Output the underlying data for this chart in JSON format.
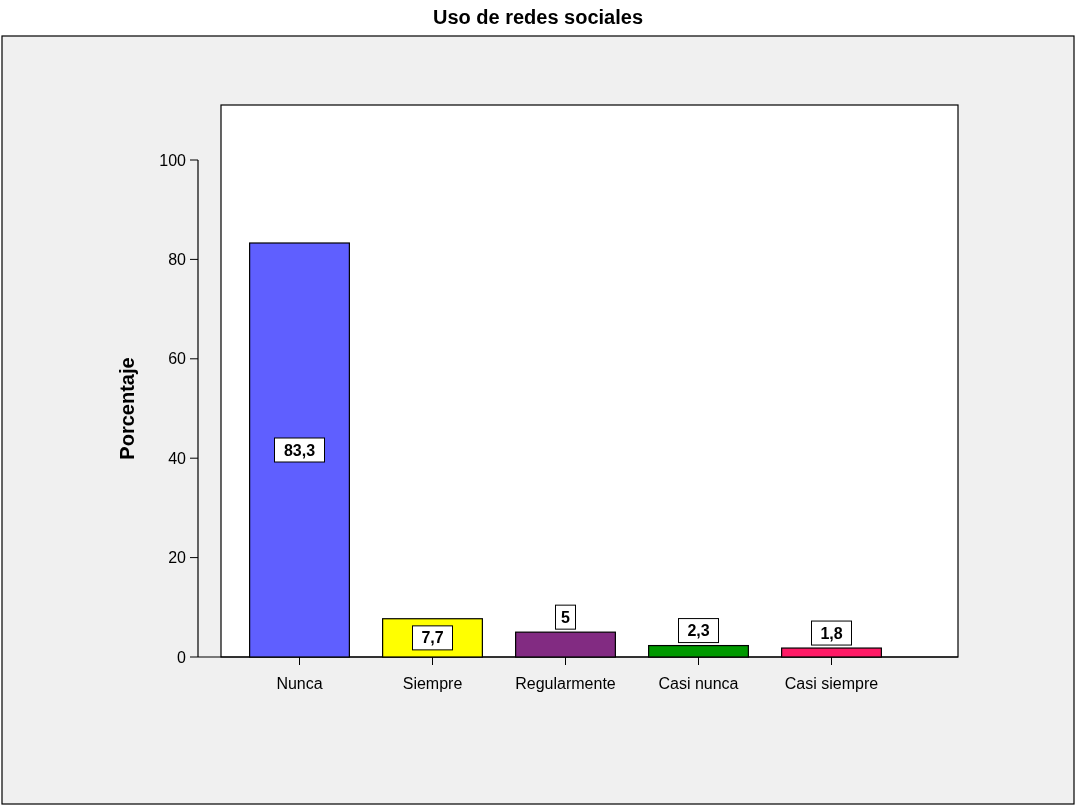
{
  "chart_data": {
    "type": "bar",
    "title": "Uso de redes sociales",
    "ylabel": "Porcentaje",
    "categories": [
      "Nunca",
      "Siempre",
      "Regularmente",
      "Casi nunca",
      "Casi siempre"
    ],
    "values": [
      83.3,
      7.7,
      5,
      2.3,
      1.8
    ],
    "colors": [
      "#5f5fff",
      "#ffff00",
      "#822b82",
      "#009900",
      "#ff1a66"
    ],
    "value_labels": [
      "83,3",
      "7,7",
      "5",
      "2,3",
      "1,8"
    ],
    "ylim": [
      0,
      100
    ],
    "yticks": [
      0,
      20,
      40,
      60,
      80,
      100
    ],
    "grid": false
  }
}
